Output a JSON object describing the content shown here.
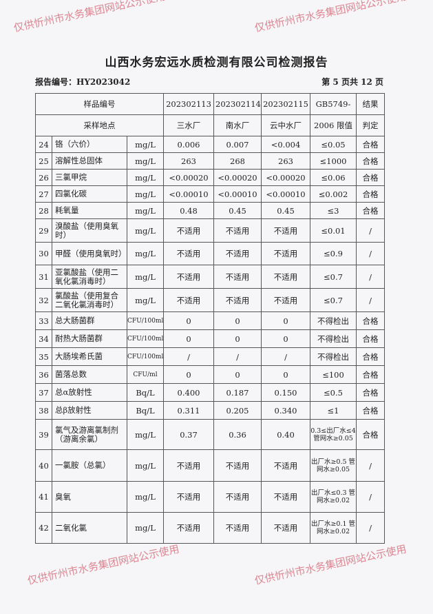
{
  "title": "山西水务宏远水质检测有限公司检测报告",
  "report_no": "报告编号：HY2023042",
  "page": "第 5 页共 12 页",
  "header": {
    "sample_no": "样品编号",
    "site": "采样地点",
    "samples": [
      "202302113",
      "202302114",
      "202302115"
    ],
    "sites": [
      "三水厂",
      "南水厂",
      "云中水厂"
    ],
    "limit1": "GB5749-",
    "limit2": "2006 限值",
    "result1": "结果",
    "result2": "判定"
  },
  "rows": [
    {
      "no": "24",
      "name": "铬（六价）",
      "unit": "mg/L",
      "v": [
        "0.006",
        "0.007",
        "<0.004"
      ],
      "limit": "≤0.05",
      "result": "合格"
    },
    {
      "no": "25",
      "name": "溶解性总固体",
      "unit": "mg/L",
      "v": [
        "263",
        "268",
        "263"
      ],
      "limit": "≤1000",
      "result": "合格"
    },
    {
      "no": "26",
      "name": "三氯甲烷",
      "unit": "mg/L",
      "v": [
        "<0.00020",
        "<0.00020",
        "<0.00020"
      ],
      "limit": "≤0.06",
      "result": "合格"
    },
    {
      "no": "27",
      "name": "四氯化碳",
      "unit": "mg/L",
      "v": [
        "<0.00010",
        "<0.00010",
        "<0.00010"
      ],
      "limit": "≤0.002",
      "result": "合格"
    },
    {
      "no": "28",
      "name": "耗氧量",
      "unit": "mg/L",
      "v": [
        "0.48",
        "0.45",
        "0.45"
      ],
      "limit": "≤3",
      "result": "合格"
    },
    {
      "no": "29",
      "name": "溴酸盐（使用臭氧时）",
      "unit": "mg/L",
      "v": [
        "不适用",
        "不适用",
        "不适用"
      ],
      "limit": "≤0.01",
      "result": "/"
    },
    {
      "no": "30",
      "name": "甲醛（使用臭氧时）",
      "unit": "mg/L",
      "v": [
        "不适用",
        "不适用",
        "不适用"
      ],
      "limit": "≤0.9",
      "result": "/"
    },
    {
      "no": "31",
      "name": "亚氯酸盐（使用二氧化氯消毒时）",
      "unit": "mg/L",
      "v": [
        "不适用",
        "不适用",
        "不适用"
      ],
      "limit": "≤0.7",
      "result": "/"
    },
    {
      "no": "32",
      "name": "氯酸盐（使用复合二氧化氯消毒时）",
      "unit": "mg/L",
      "v": [
        "不适用",
        "不适用",
        "不适用"
      ],
      "limit": "≤0.7",
      "result": "/"
    },
    {
      "no": "33",
      "name": "总大肠菌群",
      "unit": "CFU/100ml",
      "v": [
        "0",
        "0",
        "0"
      ],
      "limit": "不得检出",
      "result": "合格"
    },
    {
      "no": "34",
      "name": "耐热大肠菌群",
      "unit": "CFU/100ml",
      "v": [
        "0",
        "0",
        "0"
      ],
      "limit": "不得检出",
      "result": "合格"
    },
    {
      "no": "35",
      "name": "大肠埃希氏菌",
      "unit": "CFU/100ml",
      "v": [
        "/",
        "/",
        "/"
      ],
      "limit": "不得检出",
      "result": "合格"
    },
    {
      "no": "36",
      "name": "菌落总数",
      "unit": "CFU/ml",
      "v": [
        "0",
        "0",
        "0"
      ],
      "limit": "≤100",
      "result": "合格"
    },
    {
      "no": "37",
      "name": "总α放射性",
      "unit": "Bq/L",
      "v": [
        "0.400",
        "0.187",
        "0.150"
      ],
      "limit": "≤0.5",
      "result": "合格"
    },
    {
      "no": "38",
      "name": "总β放射性",
      "unit": "Bq/L",
      "v": [
        "0.311",
        "0.205",
        "0.340"
      ],
      "limit": "≤1",
      "result": "合格"
    },
    {
      "no": "39",
      "name": "氯气及游离氯制剂（游离余氯）",
      "unit": "mg/L",
      "v": [
        "0.37",
        "0.36",
        "0.40"
      ],
      "limit": "0.3≤出厂水≤4 管网水≥0.05",
      "result": "合格"
    },
    {
      "no": "40",
      "name": "一氯胺（总氯）",
      "unit": "mg/L",
      "v": [
        "不适用",
        "不适用",
        "不适用"
      ],
      "limit": "出厂水≥0.5 管网水≥0.05",
      "result": "/"
    },
    {
      "no": "41",
      "name": "臭氧",
      "unit": "mg/L",
      "v": [
        "不适用",
        "不适用",
        "不适用"
      ],
      "limit": "出厂水≤0.3 管网水≥0.02",
      "result": "/"
    },
    {
      "no": "42",
      "name": "二氧化氯",
      "unit": "mg/L",
      "v": [
        "不适用",
        "不适用",
        "不适用"
      ],
      "limit": "出厂水≥0.1 管网水≥0.02",
      "result": "/"
    }
  ],
  "watermark": "仅供忻州市水务集团网站公示使用"
}
